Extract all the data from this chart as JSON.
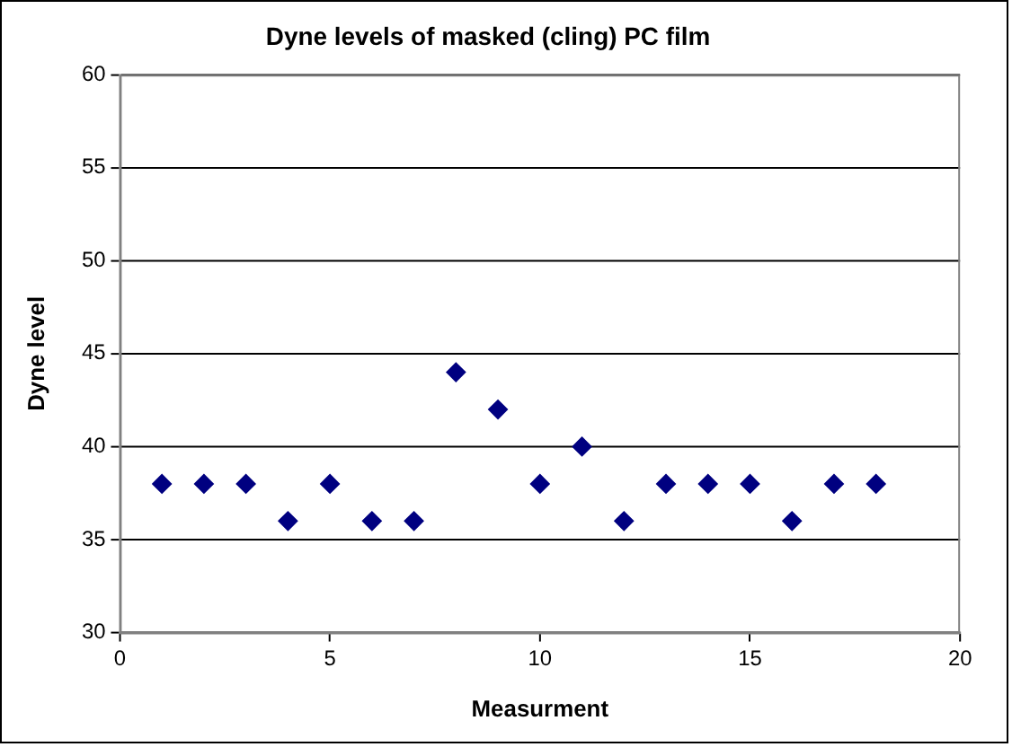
{
  "chart_data": {
    "type": "scatter",
    "title": "Dyne levels of masked (cling) PC film",
    "xlabel": "Measurment",
    "ylabel": "Dyne level",
    "x": [
      1,
      2,
      3,
      4,
      5,
      6,
      7,
      8,
      9,
      10,
      11,
      12,
      13,
      14,
      15,
      16,
      17,
      18
    ],
    "values": [
      38,
      38,
      38,
      36,
      38,
      36,
      36,
      44,
      42,
      38,
      40,
      36,
      38,
      38,
      38,
      36,
      38,
      38
    ],
    "color": "#000080",
    "marker": "diamond",
    "xlim": [
      0,
      20
    ],
    "xticks": [
      0,
      5,
      10,
      15,
      20
    ],
    "ylim": [
      30,
      60
    ],
    "yticks": [
      30,
      35,
      40,
      45,
      50,
      55,
      60
    ],
    "grid": "y",
    "legend": false
  }
}
